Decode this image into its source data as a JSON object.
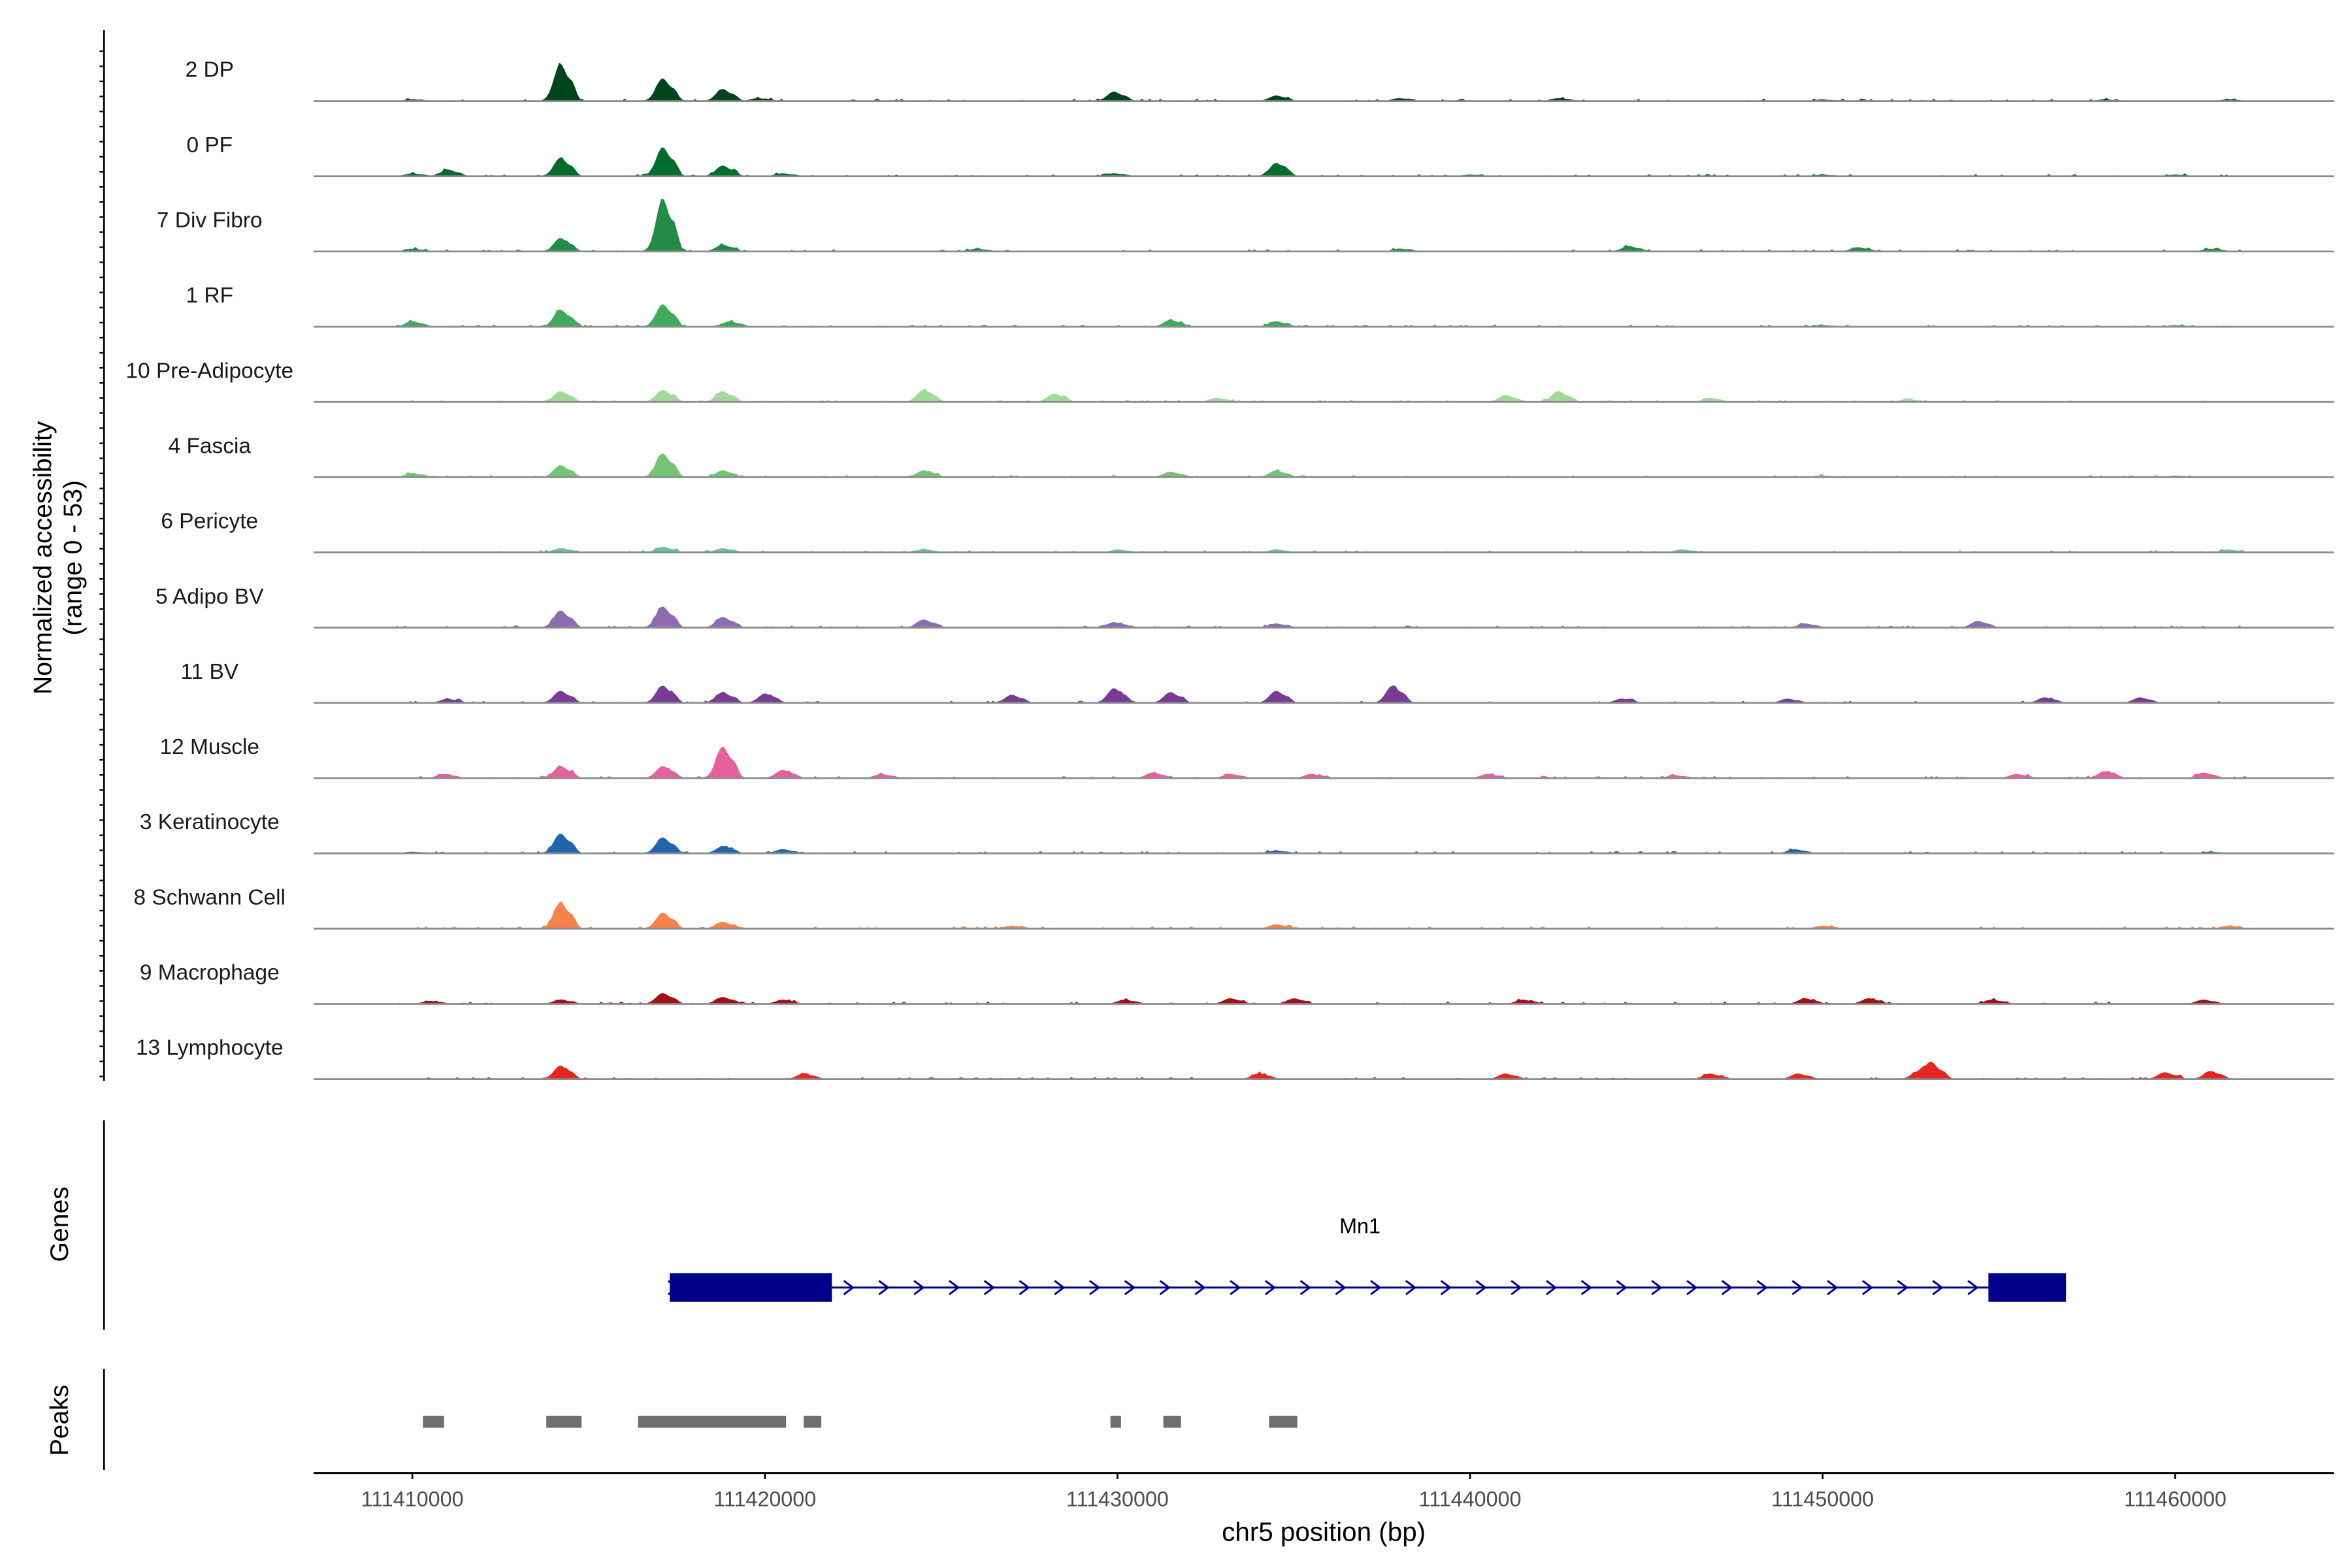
{
  "chart_data": {
    "type": "area",
    "title": "",
    "chromosome": "chr5",
    "ylabel_line1": "Normalized accessibility",
    "ylabel_line2": "(range 0 - 53)",
    "ylim": [
      0,
      53
    ],
    "xlabel": "chr5 position (bp)",
    "xlim": [
      111407200,
      111464500
    ],
    "x_ticks": [
      111410000,
      111420000,
      111430000,
      111440000,
      111450000,
      111460000
    ],
    "x_tick_labels": [
      "111410000",
      "111420000",
      "111430000",
      "111440000",
      "111450000",
      "111460000"
    ],
    "series": [
      {
        "name": "2 DP",
        "color": "#00441b",
        "values": [
          [
            111410000,
            1
          ],
          [
            111414200,
            28
          ],
          [
            111417100,
            17
          ],
          [
            111418800,
            9
          ],
          [
            111419800,
            2
          ],
          [
            111429900,
            7
          ],
          [
            111434500,
            4
          ],
          [
            111438000,
            2
          ],
          [
            111442500,
            2
          ],
          [
            111450000,
            1
          ],
          [
            111458000,
            1
          ],
          [
            111461500,
            1
          ]
        ]
      },
      {
        "name": "0 PF",
        "color": "#006d2c",
        "values": [
          [
            111410000,
            2
          ],
          [
            111411000,
            5
          ],
          [
            111414200,
            14
          ],
          [
            111417100,
            22
          ],
          [
            111418800,
            8
          ],
          [
            111420500,
            2
          ],
          [
            111429900,
            2
          ],
          [
            111434500,
            10
          ],
          [
            111440000,
            1
          ],
          [
            111450000,
            1
          ],
          [
            111460000,
            1
          ]
        ]
      },
      {
        "name": "7 Div Fibro",
        "color": "#238b45",
        "values": [
          [
            111410000,
            2
          ],
          [
            111414200,
            10
          ],
          [
            111417100,
            40
          ],
          [
            111418800,
            5
          ],
          [
            111426000,
            2
          ],
          [
            111438000,
            2
          ],
          [
            111444500,
            4
          ],
          [
            111451000,
            3
          ],
          [
            111461000,
            2
          ]
        ]
      },
      {
        "name": "1 RF",
        "color": "#41ab5d",
        "values": [
          [
            111410000,
            4
          ],
          [
            111414200,
            13
          ],
          [
            111417100,
            17
          ],
          [
            111419000,
            4
          ],
          [
            111431500,
            5
          ],
          [
            111434500,
            4
          ],
          [
            111450000,
            1
          ],
          [
            111460000,
            1
          ]
        ]
      },
      {
        "name": "10 Pre-Adipocyte",
        "color": "#a1d99b",
        "values": [
          [
            111414200,
            8
          ],
          [
            111417100,
            9
          ],
          [
            111418800,
            8
          ],
          [
            111424500,
            9
          ],
          [
            111428200,
            6
          ],
          [
            111432800,
            3
          ],
          [
            111441000,
            5
          ],
          [
            111442500,
            8
          ],
          [
            111446800,
            3
          ],
          [
            111452400,
            2
          ]
        ]
      },
      {
        "name": "4 Fascia",
        "color": "#74c476",
        "values": [
          [
            111410000,
            3
          ],
          [
            111414200,
            9
          ],
          [
            111417100,
            18
          ],
          [
            111418800,
            5
          ],
          [
            111424500,
            5
          ],
          [
            111431500,
            4
          ],
          [
            111434500,
            5
          ],
          [
            111450000,
            1
          ],
          [
            111460000,
            1
          ]
        ]
      },
      {
        "name": "6 Pericyte",
        "color": "#66c2a4",
        "values": [
          [
            111414200,
            3
          ],
          [
            111417100,
            4
          ],
          [
            111418800,
            3
          ],
          [
            111424500,
            2
          ],
          [
            111430000,
            2
          ],
          [
            111434500,
            2
          ],
          [
            111446000,
            2
          ],
          [
            111461500,
            2
          ]
        ]
      },
      {
        "name": "5 Adipo BV",
        "color": "#8c6bb1",
        "values": [
          [
            111414200,
            13
          ],
          [
            111417100,
            16
          ],
          [
            111418800,
            8
          ],
          [
            111424500,
            6
          ],
          [
            111429900,
            4
          ],
          [
            111434500,
            3
          ],
          [
            111449500,
            3
          ],
          [
            111454400,
            5
          ]
        ]
      },
      {
        "name": "11 BV",
        "color": "#7a3b96",
        "values": [
          [
            111411000,
            3
          ],
          [
            111414200,
            9
          ],
          [
            111417100,
            13
          ],
          [
            111418800,
            8
          ],
          [
            111420000,
            7
          ],
          [
            111427000,
            6
          ],
          [
            111429900,
            11
          ],
          [
            111431500,
            8
          ],
          [
            111434500,
            9
          ],
          [
            111437800,
            13
          ],
          [
            111444300,
            3
          ],
          [
            111449000,
            3
          ],
          [
            111456300,
            4
          ],
          [
            111459000,
            4
          ]
        ]
      },
      {
        "name": "12 Muscle",
        "color": "#e7609e",
        "values": [
          [
            111410900,
            3
          ],
          [
            111414200,
            9
          ],
          [
            111417100,
            9
          ],
          [
            111418800,
            24
          ],
          [
            111420500,
            6
          ],
          [
            111423300,
            3
          ],
          [
            111431000,
            4
          ],
          [
            111433200,
            3
          ],
          [
            111435500,
            3
          ],
          [
            111440500,
            3
          ],
          [
            111445800,
            2
          ],
          [
            111455500,
            3
          ],
          [
            111458000,
            5
          ],
          [
            111460800,
            4
          ]
        ]
      },
      {
        "name": "3 Keratinocyte",
        "color": "#2166ac",
        "values": [
          [
            111410000,
            1
          ],
          [
            111414200,
            15
          ],
          [
            111417100,
            12
          ],
          [
            111418800,
            5
          ],
          [
            111420500,
            3
          ],
          [
            111434500,
            2
          ],
          [
            111449200,
            3
          ],
          [
            111461000,
            1
          ]
        ]
      },
      {
        "name": "8 Schwann Cell",
        "color": "#f4844c",
        "values": [
          [
            111414200,
            20
          ],
          [
            111417100,
            12
          ],
          [
            111418800,
            5
          ],
          [
            111427000,
            2
          ],
          [
            111434500,
            3
          ],
          [
            111450000,
            2
          ],
          [
            111461500,
            2
          ]
        ]
      },
      {
        "name": "9 Macrophage",
        "color": "#a50f15",
        "values": [
          [
            111410500,
            2
          ],
          [
            111414200,
            3
          ],
          [
            111417100,
            8
          ],
          [
            111418800,
            5
          ],
          [
            111420500,
            3
          ],
          [
            111430200,
            3
          ],
          [
            111433200,
            4
          ],
          [
            111435000,
            4
          ],
          [
            111441500,
            3
          ],
          [
            111449500,
            4
          ],
          [
            111451300,
            4
          ],
          [
            111454800,
            3
          ],
          [
            111460800,
            3
          ]
        ]
      },
      {
        "name": "13 Lymphocyte",
        "color": "#e3261f",
        "values": [
          [
            111414200,
            10
          ],
          [
            111421100,
            4
          ],
          [
            111434000,
            4
          ],
          [
            111441000,
            4
          ],
          [
            111446800,
            4
          ],
          [
            111449300,
            4
          ],
          [
            111452700,
            5
          ],
          [
            111453100,
            11
          ],
          [
            111459700,
            5
          ],
          [
            111461000,
            6
          ]
        ]
      }
    ],
    "genes_label": "Genes",
    "gene": {
      "name": "Mn1",
      "start": 111417300,
      "end": 111456900,
      "strand": "+",
      "exons": [
        [
          111417300,
          111421900
        ],
        [
          111454700,
          111456900
        ]
      ],
      "color": "#00008b"
    },
    "peaks_label": "Peaks",
    "peaks": [
      [
        111410300,
        111410900
      ],
      [
        111413800,
        111414800
      ],
      [
        111416400,
        111420600
      ],
      [
        111421100,
        111421600
      ],
      [
        111429800,
        111430100
      ],
      [
        111431300,
        111431800
      ],
      [
        111434300,
        111435100
      ]
    ],
    "peak_color": "#6e6e6e"
  }
}
